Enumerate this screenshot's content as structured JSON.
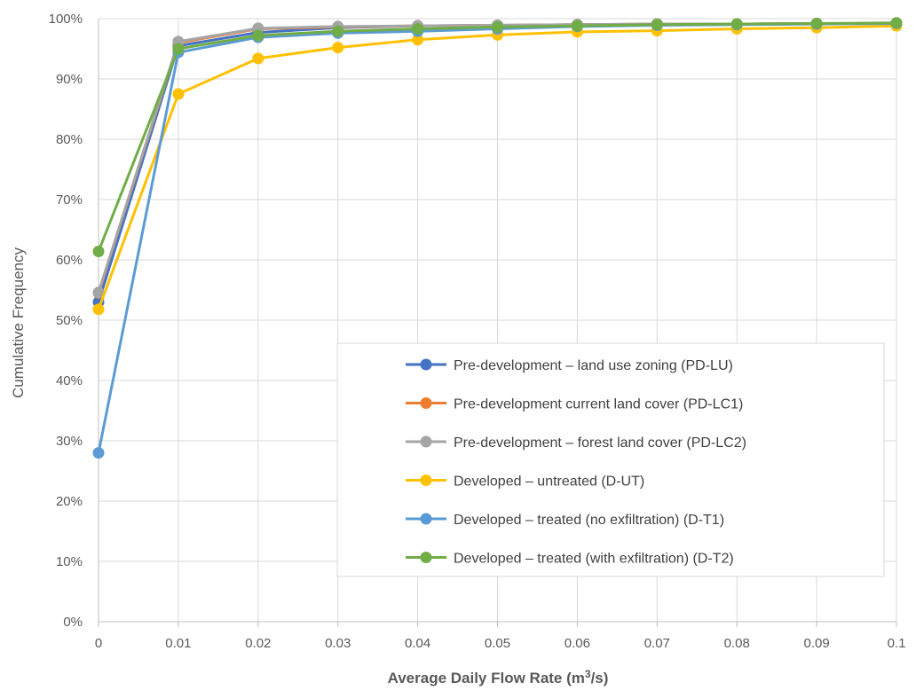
{
  "chart_data": {
    "type": "line",
    "title": "",
    "xlabel": "Average Daily Flow Rate (m³/s)",
    "ylabel": "Cumulative Frequency",
    "x": [
      0,
      0.01,
      0.02,
      0.03,
      0.04,
      0.05,
      0.06,
      0.07,
      0.08,
      0.09,
      0.1
    ],
    "x_tick_labels": [
      "0",
      "0.01",
      "0.02",
      "0.03",
      "0.04",
      "0.05",
      "0.06",
      "0.07",
      "0.08",
      "0.09",
      "0.1"
    ],
    "y_tick_labels": [
      "0%",
      "10%",
      "20%",
      "30%",
      "40%",
      "50%",
      "60%",
      "70%",
      "80%",
      "90%",
      "100%"
    ],
    "xlim": [
      0,
      0.1
    ],
    "ylim": [
      0,
      1
    ],
    "grid": true,
    "legend_position": "bottom-right",
    "series": [
      {
        "name": "Pre-development – land use zoning (PD-LU)",
        "color": "#4472C4",
        "values": [
          0.53,
          0.955,
          0.977,
          0.985,
          0.988,
          0.989,
          0.99,
          0.991,
          0.991,
          0.992,
          0.992
        ]
      },
      {
        "name": "Pre-development current land cover (PD-LC1)",
        "color": "#ED7D31",
        "values": [
          0.545,
          0.96,
          0.983,
          0.986,
          0.988,
          0.989,
          0.99,
          0.991,
          0.991,
          0.992,
          0.992
        ]
      },
      {
        "name": "Pre-development – forest land cover (PD-LC2)",
        "color": "#A5A5A5",
        "values": [
          0.546,
          0.962,
          0.984,
          0.987,
          0.988,
          0.989,
          0.99,
          0.991,
          0.991,
          0.992,
          0.992
        ]
      },
      {
        "name": "Developed – untreated (D-UT)",
        "color": "#FFC000",
        "values": [
          0.518,
          0.875,
          0.934,
          0.952,
          0.965,
          0.973,
          0.978,
          0.98,
          0.983,
          0.985,
          0.988
        ]
      },
      {
        "name": "Developed – treated (no exfiltration) (D-T1)",
        "color": "#5B9BD5",
        "values": [
          0.28,
          0.944,
          0.969,
          0.976,
          0.979,
          0.983,
          0.987,
          0.989,
          0.99,
          0.991,
          0.992
        ]
      },
      {
        "name": "Developed – treated (with exfiltration) (D-T2)",
        "color": "#70AD47",
        "values": [
          0.614,
          0.95,
          0.972,
          0.979,
          0.983,
          0.986,
          0.988,
          0.99,
          0.991,
          0.992,
          0.993
        ]
      }
    ]
  }
}
